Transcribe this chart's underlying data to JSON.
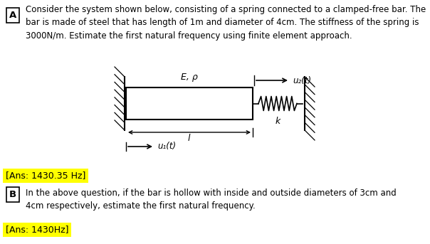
{
  "text_A_label": "A",
  "text_A_question": "Consider the system shown below, consisting of a spring connected to a clamped-free bar. The\nbar is made of steel that has length of 1m and diameter of 4cm. The stiffness of the spring is\n3000N/m. Estimate the first natural frequency using finite element approach.",
  "ans_A": "[Ans: 1430.35 Hz]",
  "text_B_label": "B",
  "text_B_question": "In the above question, if the bar is hollow with inside and outside diameters of 3cm and\n4cm respectively, estimate the first natural frequency.",
  "ans_B": "[Ans: 1430Hz]",
  "bg_color": "#ffffff",
  "text_color": "#000000",
  "ans_bg_color": "#ffff00",
  "diagram_label_Ep": "E, ρ",
  "diagram_label_u2": "u₂(t)",
  "diagram_label_u1": "u₁(t)",
  "diagram_label_l": "l",
  "diagram_label_k": "k",
  "fig_width": 6.04,
  "fig_height": 3.43,
  "font_size_text": 8.5
}
